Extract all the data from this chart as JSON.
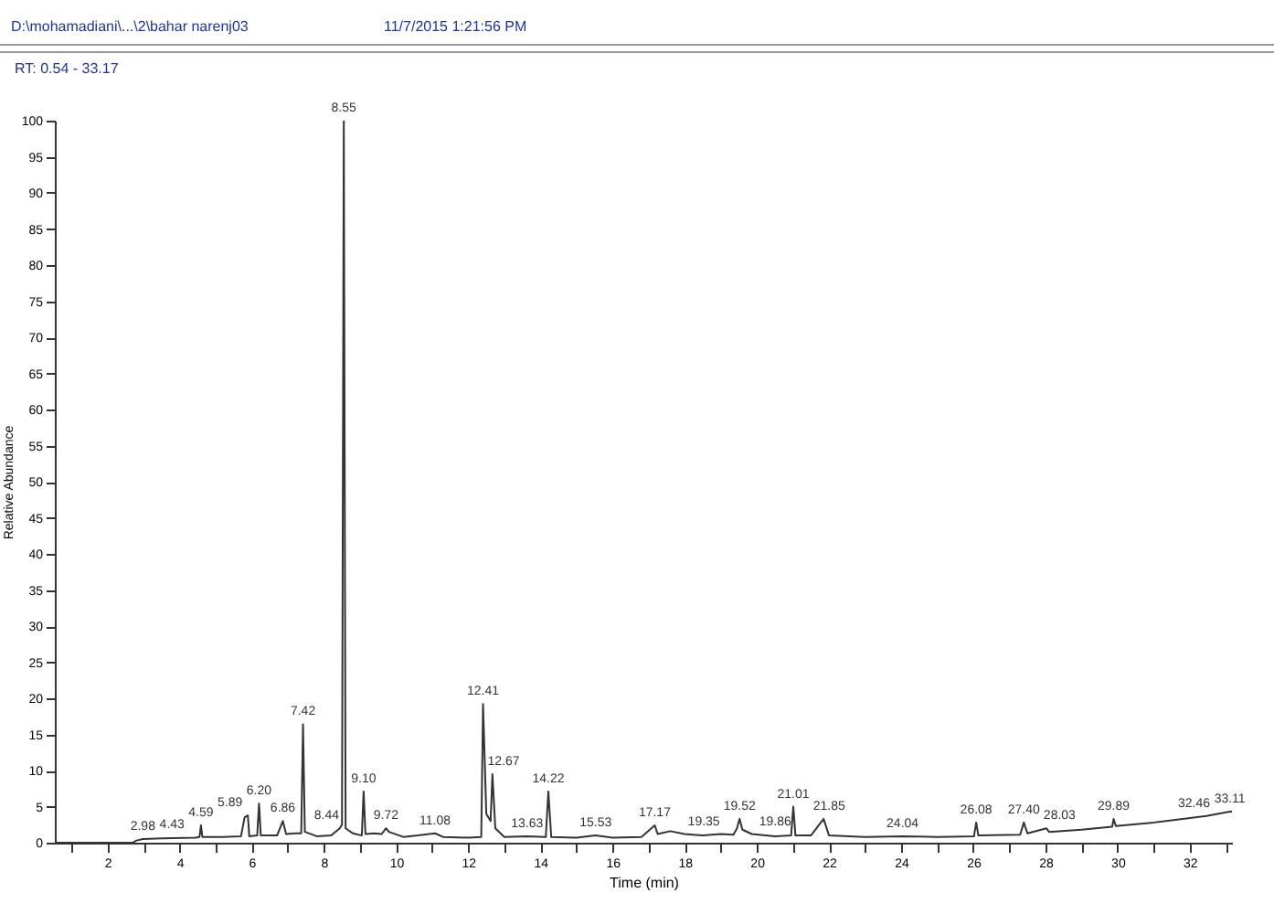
{
  "chart_data": {
    "type": "line",
    "xlabel": "Time (min)",
    "ylabel": "Relative Abundance",
    "annotations": [
      "D:\\mohamadiani\\...\\2\\bahar narenj03",
      "11/7/2015 1:21:56 PM",
      "RT: 0.54 - 33.17",
      {
        "text": "2.98",
        "x": 2.98,
        "y": 0.5
      },
      {
        "text": "4.43",
        "x": 4.43,
        "y": 0.7
      },
      {
        "text": "4.59",
        "x": 4.59,
        "y": 2.4
      },
      {
        "text": "5.89",
        "x": 5.89,
        "y": 3.8
      },
      {
        "text": "6.20",
        "x": 6.2,
        "y": 5.4
      },
      {
        "text": "6.86",
        "x": 6.86,
        "y": 3.0
      },
      {
        "text": "7.42",
        "x": 7.42,
        "y": 16.4
      },
      {
        "text": "8.44",
        "x": 8.44,
        "y": 2.0
      },
      {
        "text": "8.55",
        "x": 8.55,
        "y": 100
      },
      {
        "text": "9.10",
        "x": 9.1,
        "y": 7.1
      },
      {
        "text": "9.72",
        "x": 9.72,
        "y": 2.0
      },
      {
        "text": "11.08",
        "x": 11.08,
        "y": 1.3
      },
      {
        "text": "12.41",
        "x": 12.41,
        "y": 19.2
      },
      {
        "text": "12.67",
        "x": 12.67,
        "y": 9.5
      },
      {
        "text": "13.63",
        "x": 13.63,
        "y": 0.9
      },
      {
        "text": "14.22",
        "x": 14.22,
        "y": 7.1
      },
      {
        "text": "15.53",
        "x": 15.53,
        "y": 1.0
      },
      {
        "text": "17.17",
        "x": 17.17,
        "y": 2.4
      },
      {
        "text": "19.35",
        "x": 19.35,
        "y": 1.1
      },
      {
        "text": "19.52",
        "x": 19.52,
        "y": 3.3
      },
      {
        "text": "19.86",
        "x": 19.86,
        "y": 1.2
      },
      {
        "text": "21.01",
        "x": 21.01,
        "y": 5.0
      },
      {
        "text": "21.85",
        "x": 21.85,
        "y": 3.3
      },
      {
        "text": "24.04",
        "x": 24.04,
        "y": 0.9
      },
      {
        "text": "26.08",
        "x": 26.08,
        "y": 2.8
      },
      {
        "text": "27.40",
        "x": 27.4,
        "y": 2.8
      },
      {
        "text": "28.03",
        "x": 28.03,
        "y": 2.0
      },
      {
        "text": "29.89",
        "x": 29.89,
        "y": 3.3
      },
      {
        "text": "32.46",
        "x": 32.46,
        "y": 3.7
      },
      {
        "text": "33.11",
        "x": 33.11,
        "y": 4.3
      }
    ],
    "xlim": [
      0.54,
      33.17
    ],
    "xticks": [
      {
        "value": 1,
        "label": null
      },
      2,
      {
        "value": 3,
        "label": null
      },
      4,
      {
        "value": 5,
        "label": null
      },
      6,
      {
        "value": 7,
        "label": null
      },
      8,
      {
        "value": 9,
        "label": null
      },
      10,
      {
        "value": 11,
        "label": null
      },
      12,
      {
        "value": 13,
        "label": null
      },
      14,
      {
        "value": 15,
        "label": null
      },
      16,
      {
        "value": 17,
        "label": null
      },
      18,
      {
        "value": 19,
        "label": null
      },
      20,
      {
        "value": 21,
        "label": null
      },
      22,
      {
        "value": 23,
        "label": null
      },
      24,
      {
        "value": 25,
        "label": null
      },
      26,
      {
        "value": 27,
        "label": null
      },
      28,
      {
        "value": 29,
        "label": null
      },
      30,
      {
        "value": 31,
        "label": null
      },
      32,
      {
        "value": 33,
        "label": null
      }
    ],
    "ylim": [
      0,
      100
    ],
    "yticks": [
      0,
      5,
      10,
      15,
      20,
      25,
      30,
      35,
      40,
      45,
      50,
      55,
      60,
      65,
      70,
      75,
      80,
      85,
      90,
      95,
      100
    ],
    "series": [
      {
        "color": "#333333",
        "x": [
          0.54,
          2.7,
          2.8,
          2.98,
          3.5,
          4.43,
          4.55,
          4.59,
          4.63,
          5.2,
          5.7,
          5.8,
          5.89,
          5.93,
          6.15,
          6.2,
          6.25,
          6.7,
          6.86,
          6.95,
          7.2,
          7.37,
          7.42,
          7.47,
          7.8,
          8.2,
          8.44,
          8.5,
          8.55,
          8.6,
          8.8,
          9.05,
          9.1,
          9.15,
          9.4,
          9.6,
          9.72,
          9.8,
          10.2,
          10.6,
          11.08,
          11.3,
          12.0,
          12.36,
          12.41,
          12.5,
          12.62,
          12.67,
          12.75,
          13.0,
          13.63,
          14.15,
          14.22,
          14.3,
          15.0,
          15.53,
          16.0,
          16.8,
          17.17,
          17.25,
          17.6,
          18.0,
          18.5,
          19.0,
          19.35,
          19.45,
          19.52,
          19.6,
          19.86,
          20.5,
          20.95,
          21.01,
          21.07,
          21.5,
          21.85,
          22.0,
          23.0,
          24.04,
          25.0,
          26.02,
          26.08,
          26.14,
          27.3,
          27.4,
          27.5,
          28.03,
          28.1,
          29.0,
          29.85,
          29.89,
          29.95,
          31.0,
          32.46,
          33.11,
          33.17
        ],
        "values": [
          0,
          0,
          0.3,
          0.5,
          0.6,
          0.7,
          0.8,
          2.4,
          0.8,
          0.8,
          0.9,
          3.5,
          3.8,
          0.9,
          1.0,
          5.4,
          1.0,
          1.0,
          3.0,
          1.2,
          1.3,
          1.3,
          16.4,
          1.5,
          0.9,
          1.0,
          2.0,
          2.5,
          100,
          2.0,
          1.3,
          1.0,
          7.1,
          1.2,
          1.3,
          1.2,
          2.0,
          1.5,
          0.8,
          1.0,
          1.3,
          0.8,
          0.7,
          0.8,
          19.2,
          4.0,
          3.0,
          9.5,
          2.0,
          0.8,
          0.9,
          0.8,
          7.1,
          0.8,
          0.7,
          1.0,
          0.7,
          0.8,
          2.4,
          1.2,
          1.6,
          1.2,
          1.0,
          1.2,
          1.1,
          2.0,
          3.3,
          1.8,
          1.2,
          0.9,
          1.0,
          5.0,
          1.0,
          1.0,
          3.3,
          1.0,
          0.8,
          0.9,
          0.8,
          0.9,
          2.8,
          1.0,
          1.1,
          2.8,
          1.3,
          2.0,
          1.5,
          1.8,
          2.2,
          3.3,
          2.3,
          2.8,
          3.7,
          4.3,
          4.3
        ]
      }
    ]
  }
}
